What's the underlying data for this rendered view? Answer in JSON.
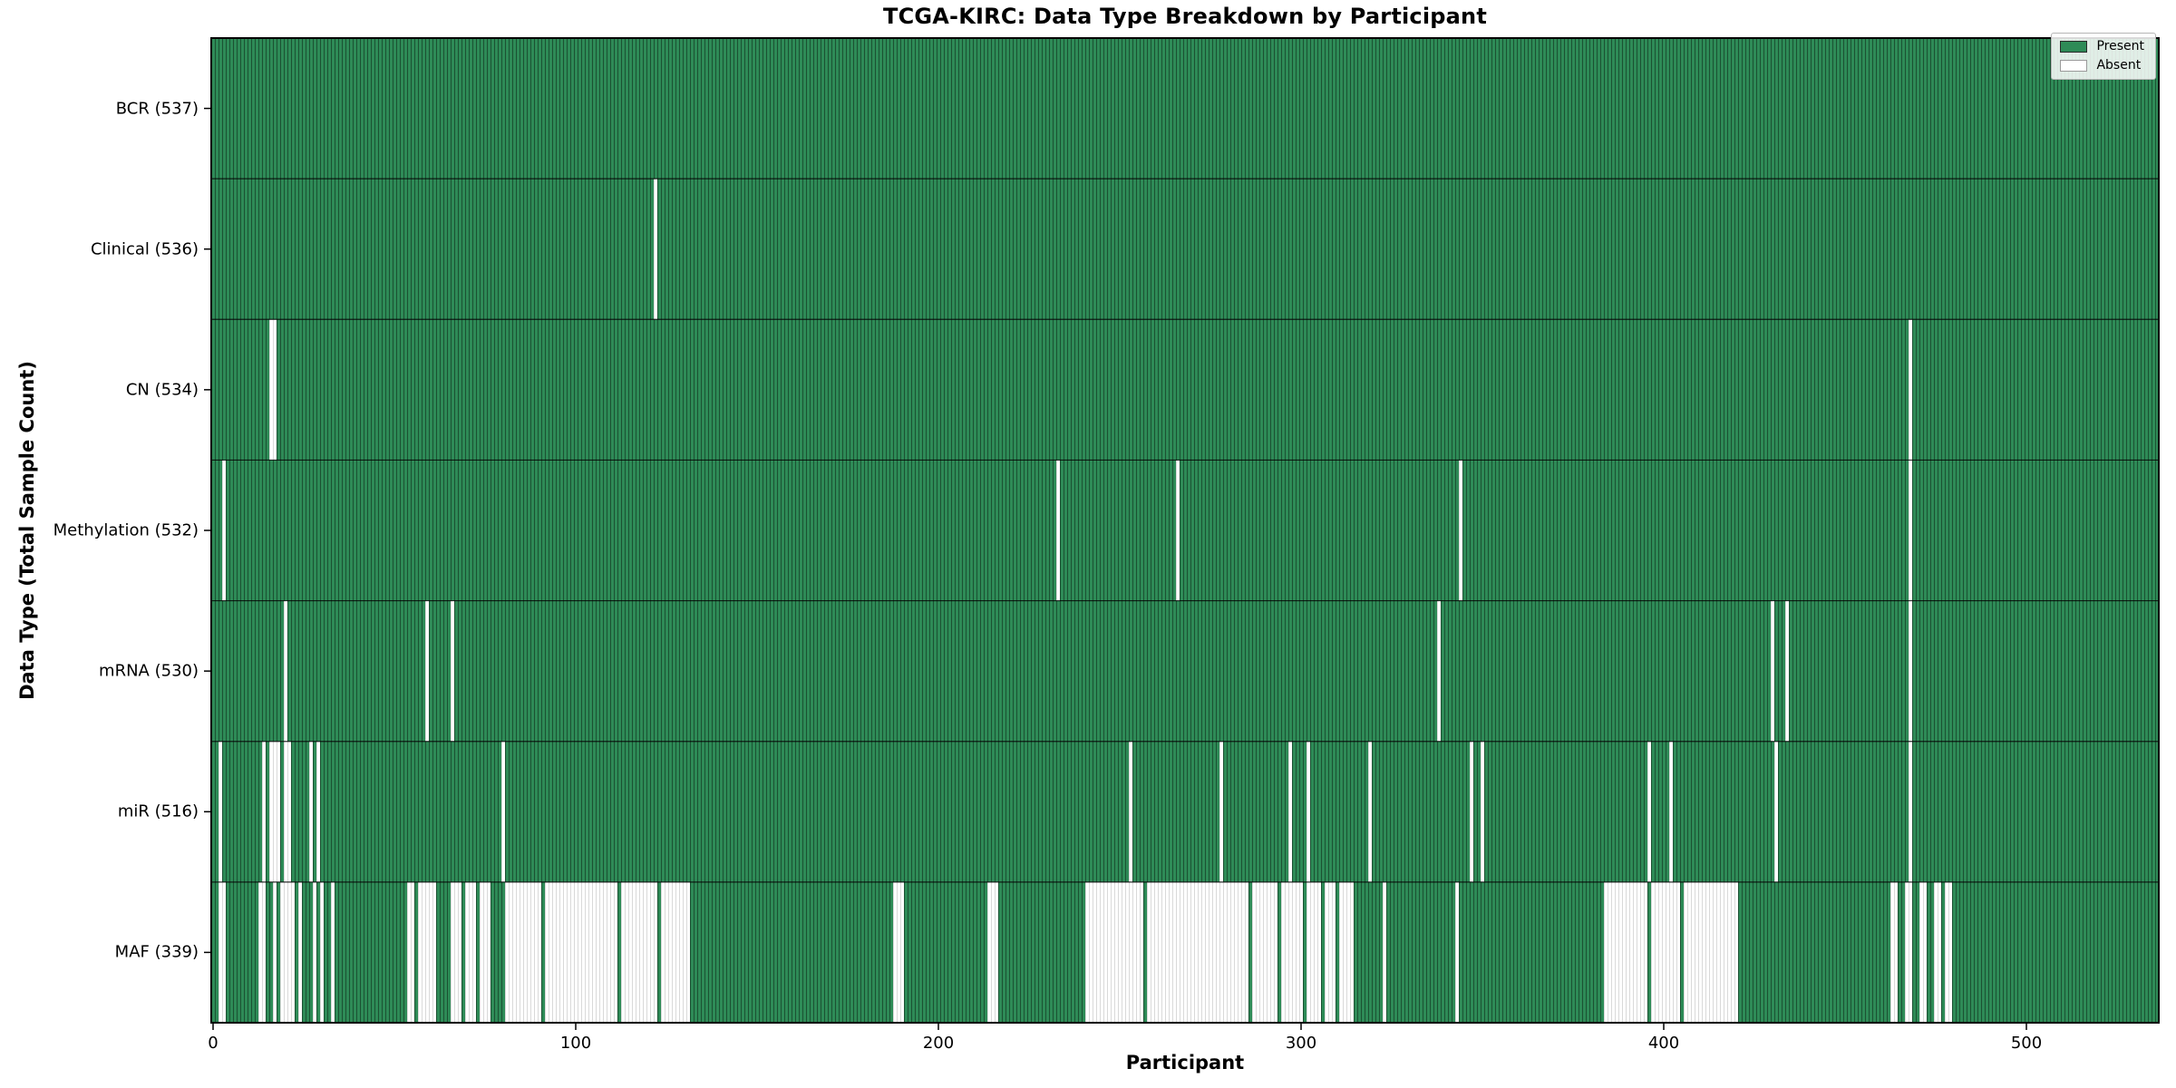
{
  "chart_data": {
    "type": "heatmap",
    "title": "TCGA-KIRC: Data Type Breakdown by Participant",
    "xlabel": "Participant",
    "ylabel": "Data Type (Total Sample Count)",
    "x_ticks": [
      0,
      100,
      200,
      300,
      400,
      500
    ],
    "n_participants": 537,
    "xlim": [
      -0.5,
      536.5
    ],
    "grid": false,
    "legend": {
      "position": "upper right",
      "entries": [
        {
          "label": "Present",
          "color": "#2e8b57"
        },
        {
          "label": "Absent",
          "color": "#ffffff"
        }
      ]
    },
    "colors": {
      "present": "#2e8b57",
      "absent": "#ffffff",
      "bar_edge_on_present": "rgba(0,0,0,0.42)",
      "bar_edge_on_absent": "rgba(0,0,0,0.15)",
      "row_divider": "rgba(0,0,0,0.8)",
      "axes_border": "#000000"
    },
    "rows": [
      {
        "data_type": "BCR",
        "label": "BCR (537)",
        "present_count": 537,
        "absent_ranges": []
      },
      {
        "data_type": "Clinical",
        "label": "Clinical (536)",
        "present_count": 536,
        "absent_ranges": [
          [
            122,
            122
          ]
        ]
      },
      {
        "data_type": "CN",
        "label": "CN (534)",
        "present_count": 534,
        "absent_ranges": [
          [
            16,
            17
          ],
          [
            468,
            468
          ]
        ]
      },
      {
        "data_type": "Methylation",
        "label": "Methylation (532)",
        "present_count": 532,
        "absent_ranges": [
          [
            3,
            3
          ],
          [
            233,
            233
          ],
          [
            266,
            266
          ],
          [
            344,
            344
          ],
          [
            468,
            468
          ]
        ]
      },
      {
        "data_type": "mRNA",
        "label": "mRNA (530)",
        "present_count": 530,
        "absent_ranges": [
          [
            20,
            20
          ],
          [
            59,
            59
          ],
          [
            66,
            66
          ],
          [
            338,
            338
          ],
          [
            430,
            430
          ],
          [
            434,
            434
          ],
          [
            468,
            468
          ]
        ]
      },
      {
        "data_type": "miR",
        "label": "miR (516)",
        "present_count": 516,
        "absent_ranges": [
          [
            2,
            2
          ],
          [
            14,
            14
          ],
          [
            16,
            18
          ],
          [
            20,
            21
          ],
          [
            27,
            27
          ],
          [
            29,
            29
          ],
          [
            80,
            80
          ],
          [
            253,
            253
          ],
          [
            278,
            278
          ],
          [
            297,
            297
          ],
          [
            302,
            302
          ],
          [
            319,
            319
          ],
          [
            347,
            347
          ],
          [
            350,
            350
          ],
          [
            396,
            396
          ],
          [
            402,
            402
          ],
          [
            431,
            431
          ],
          [
            468,
            468
          ]
        ]
      },
      {
        "data_type": "MAF",
        "label": "MAF (339)",
        "present_count": 339,
        "absent_ranges": [
          [
            2,
            3
          ],
          [
            13,
            14
          ],
          [
            17,
            17
          ],
          [
            19,
            22
          ],
          [
            24,
            24
          ],
          [
            28,
            28
          ],
          [
            30,
            30
          ],
          [
            33,
            33
          ],
          [
            54,
            55
          ],
          [
            57,
            61
          ],
          [
            66,
            68
          ],
          [
            70,
            72
          ],
          [
            74,
            76
          ],
          [
            81,
            90
          ],
          [
            92,
            111
          ],
          [
            113,
            122
          ],
          [
            124,
            131
          ],
          [
            188,
            190
          ],
          [
            214,
            216
          ],
          [
            241,
            256
          ],
          [
            258,
            285
          ],
          [
            287,
            293
          ],
          [
            295,
            300
          ],
          [
            302,
            305
          ],
          [
            307,
            309
          ],
          [
            311,
            314
          ],
          [
            323,
            323
          ],
          [
            343,
            343
          ],
          [
            384,
            395
          ],
          [
            397,
            404
          ],
          [
            406,
            420
          ],
          [
            463,
            464
          ],
          [
            467,
            468
          ],
          [
            471,
            472
          ],
          [
            475,
            476
          ],
          [
            478,
            479
          ]
        ]
      }
    ]
  }
}
